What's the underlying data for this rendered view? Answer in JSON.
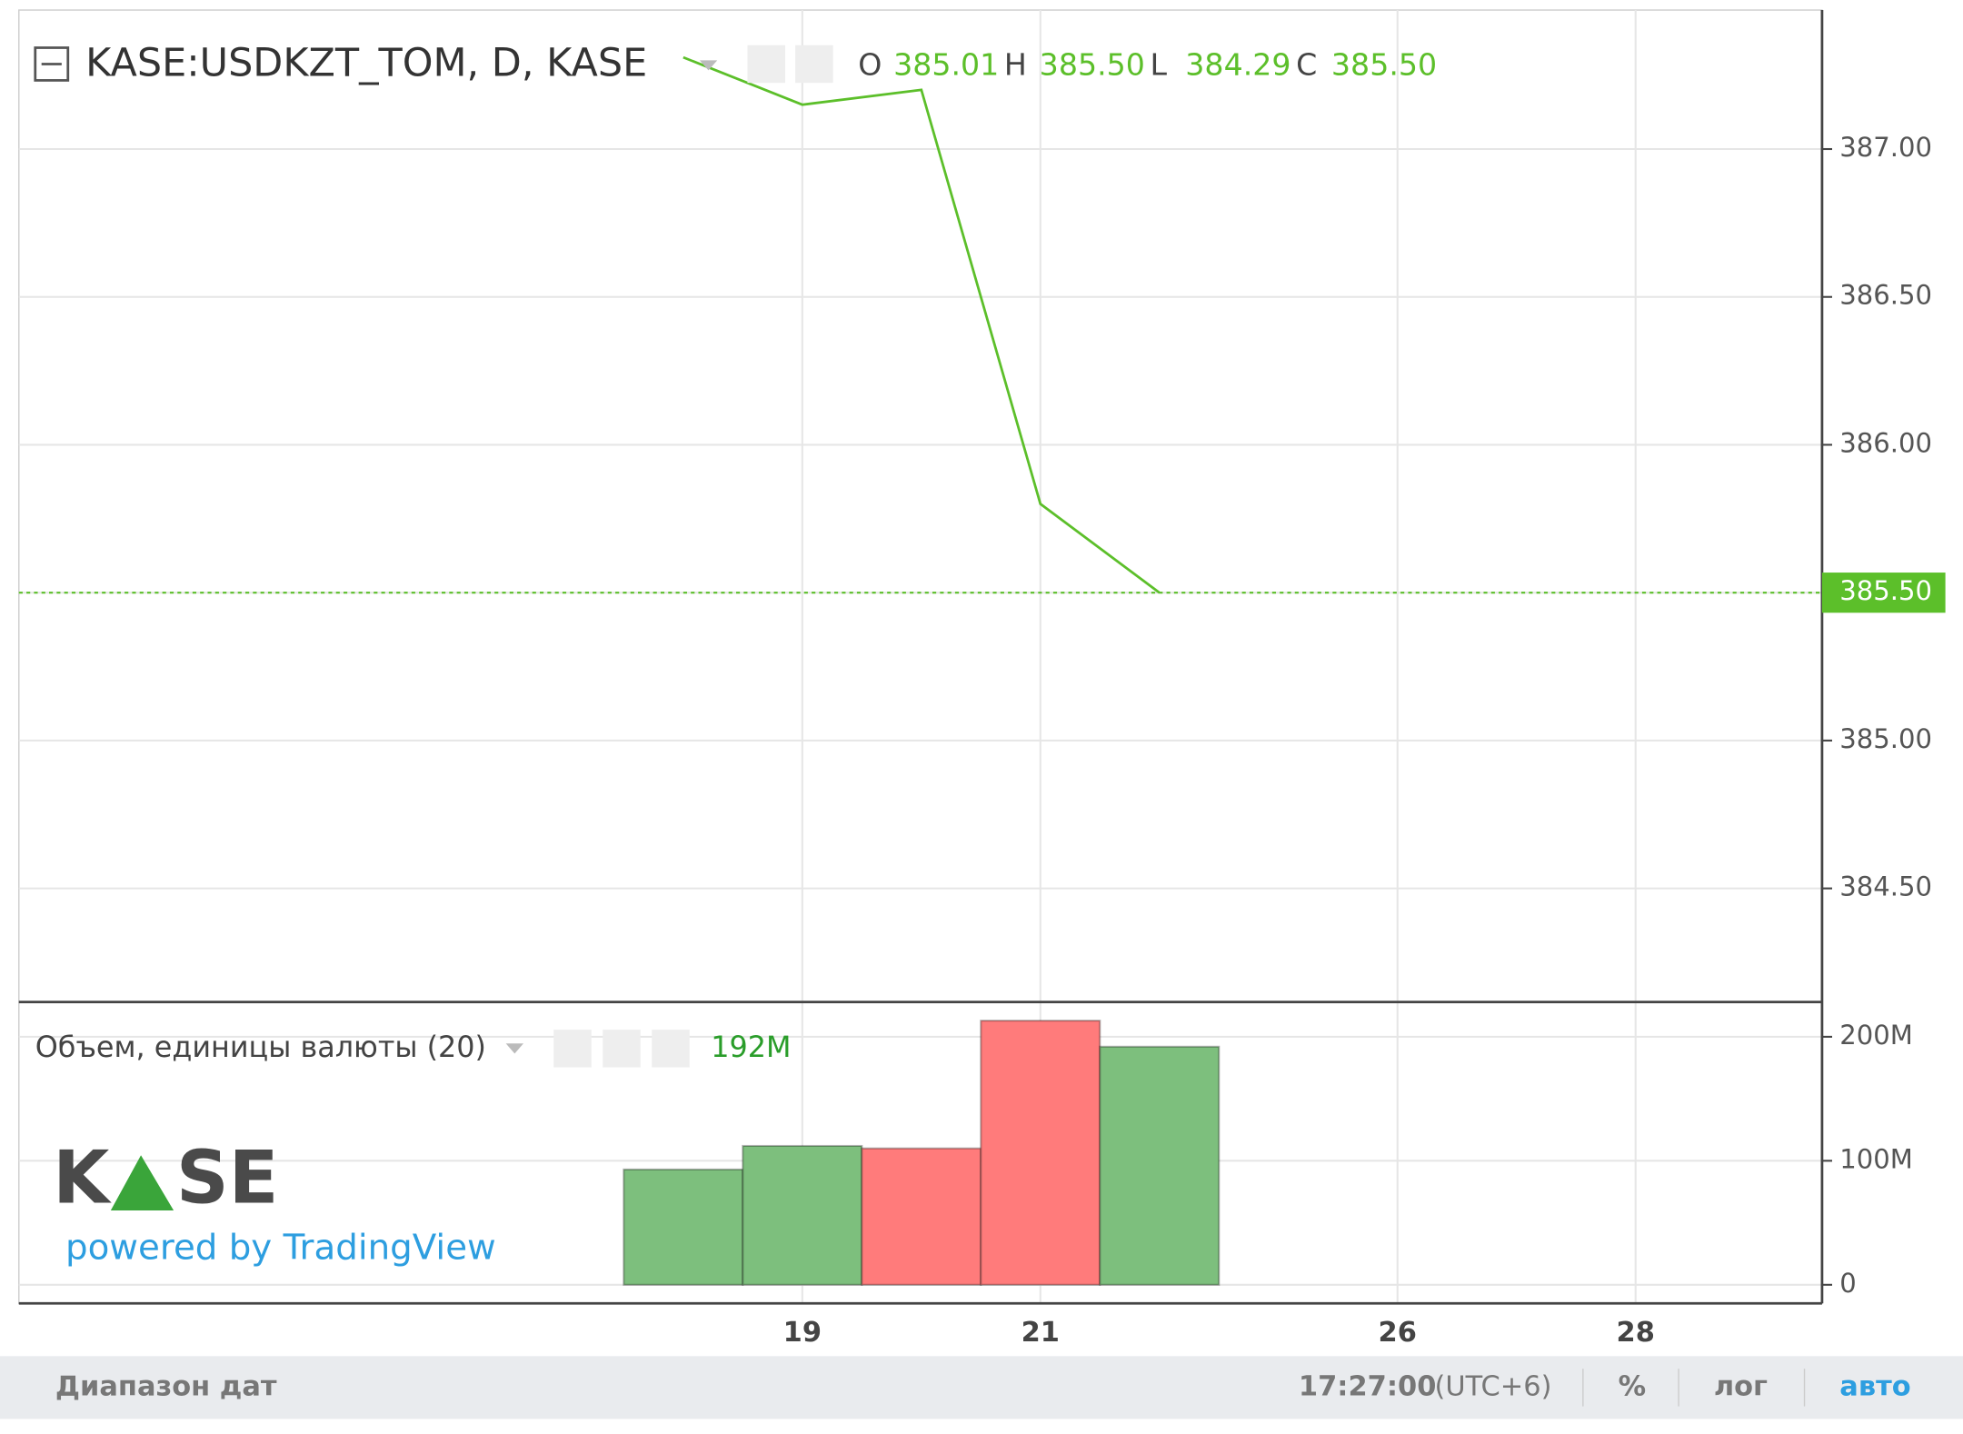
{
  "chart_data": [
    {
      "type": "line",
      "title": "KASE:USDKZT_TOM, D, KASE",
      "ohlc": {
        "names": [
          "O",
          "H",
          "L",
          "C"
        ],
        "values": [
          385.01,
          385.5,
          384.29,
          385.5
        ],
        "value_labels": [
          "385.01",
          "385.50",
          "384.29",
          "385.50"
        ]
      },
      "categories": [
        null,
        "19",
        null,
        "21",
        null,
        null,
        "26",
        null,
        "28"
      ],
      "series": [
        {
          "name": "KASE:USDKZT_TOM",
          "color": "#5cbf2a",
          "values": [
            387.31,
            387.15,
            387.2,
            385.8,
            385.5,
            null,
            null,
            null,
            null
          ]
        }
      ],
      "last_value": {
        "value": 385.5,
        "label": "385.50"
      },
      "ylim": [
        384.12,
        387.47
      ],
      "yticks": [
        {
          "value": 384.5,
          "label": "384.50"
        },
        {
          "value": 385,
          "label": "385.00"
        },
        {
          "value": 385.5,
          "label": "385.50"
        },
        {
          "value": 386,
          "label": "386.00"
        },
        {
          "value": 386.5,
          "label": "386.50"
        },
        {
          "value": 387,
          "label": "387.00"
        }
      ],
      "grid": true
    },
    {
      "type": "bar",
      "title": "Объем, единицы валюты (20)",
      "current": {
        "value": 192000000,
        "label": "192M"
      },
      "categories": [
        null,
        "19",
        null,
        "21",
        null,
        null,
        "26",
        null,
        "28"
      ],
      "values": [
        93000000,
        112000000,
        110000000,
        213000000,
        192000000,
        null,
        null,
        null,
        null
      ],
      "colors": [
        "#7dbf7d",
        "#7dbf7d",
        "#ff7b7b",
        "#ff7b7b",
        "#7dbf7d",
        null,
        null,
        null,
        null
      ],
      "ylim": [
        -14000000,
        228000000
      ],
      "yticks": [
        {
          "value": 0,
          "label": "0"
        },
        {
          "value": 100000000,
          "label": "100M"
        },
        {
          "value": 200000000,
          "label": "200M"
        }
      ],
      "grid": true
    }
  ],
  "watermark": {
    "logo_left": "K",
    "logo_right": "SE",
    "powered": "powered by TradingView"
  },
  "toolbar": {
    "range": "Диапазон дат",
    "time": "17:27:00",
    "timezone": "(UTC+6)",
    "percent": "%",
    "log": "лог",
    "auto": "авто"
  }
}
